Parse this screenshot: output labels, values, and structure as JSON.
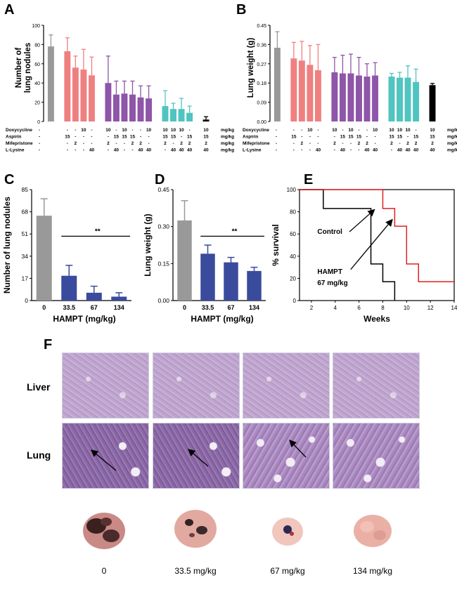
{
  "panel_letters": {
    "A": "A",
    "B": "B",
    "C": "C",
    "D": "D",
    "E": "E",
    "F": "F"
  },
  "colors": {
    "gray": "#999999",
    "salmon": "#f08080",
    "purple": "#8e55a8",
    "teal": "#4fc4c0",
    "black": "#000000",
    "navy": "#3a4a9c",
    "red": "#e02020"
  },
  "treatment_table": {
    "rows": [
      "Doxycycline",
      "Aspirin",
      "Mifepristone",
      "L-Lysine"
    ],
    "units": [
      "mg/kg",
      "mg/kg",
      "mg/kg",
      "mg/kg"
    ],
    "columns": [
      [
        "-",
        "-",
        "-",
        "-"
      ],
      [
        "-",
        "15",
        "-",
        "-"
      ],
      [
        "-",
        "-",
        "2",
        "-"
      ],
      [
        "10",
        "-",
        "-",
        "-"
      ],
      [
        "-",
        "-",
        "-",
        "40"
      ],
      [
        "10",
        "-",
        "2",
        "-"
      ],
      [
        "-",
        "15",
        "-",
        "40"
      ],
      [
        "10",
        "15",
        "-",
        "-"
      ],
      [
        "-",
        "15",
        "2",
        "-"
      ],
      [
        "-",
        "-",
        "2",
        "40"
      ],
      [
        "10",
        "-",
        "-",
        "40"
      ],
      [
        "10",
        "15",
        "2",
        "-"
      ],
      [
        "10",
        "15",
        "-",
        "40"
      ],
      [
        "10",
        "-",
        "2",
        "40"
      ],
      [
        "-",
        "15",
        "2",
        "40"
      ],
      [
        "10",
        "15",
        "2",
        "40"
      ]
    ]
  },
  "chart_data": [
    {
      "panel": "A",
      "type": "bar",
      "ylabel": "Number of\nlung nodules",
      "ylim": [
        0,
        100
      ],
      "yticks": [
        "0",
        "20",
        "40",
        "60",
        "80",
        "100"
      ],
      "values": [
        78,
        73,
        56,
        54,
        48,
        40,
        28,
        29,
        28,
        25,
        24,
        16,
        13,
        13,
        9,
        2
      ],
      "errors": [
        12,
        14,
        12,
        21,
        19,
        28,
        14,
        13,
        14,
        12,
        13,
        16,
        6,
        11,
        7,
        3
      ],
      "colors": [
        "gray",
        "salmon",
        "salmon",
        "salmon",
        "salmon",
        "purple",
        "purple",
        "purple",
        "purple",
        "purple",
        "purple",
        "teal",
        "teal",
        "teal",
        "teal",
        "black"
      ]
    },
    {
      "panel": "B",
      "type": "bar",
      "ylabel": "Lung weight (g)",
      "ylim": [
        0,
        0.45
      ],
      "yticks": [
        "0.00",
        "0.09",
        "0.18",
        "0.27",
        "0.36",
        "0.45"
      ],
      "values": [
        0.345,
        0.295,
        0.285,
        0.265,
        0.24,
        0.23,
        0.225,
        0.225,
        0.215,
        0.21,
        0.215,
        0.21,
        0.205,
        0.205,
        0.185,
        0.17
      ],
      "errors": [
        0.075,
        0.075,
        0.09,
        0.09,
        0.12,
        0.07,
        0.085,
        0.09,
        0.085,
        0.06,
        0.06,
        0.015,
        0.025,
        0.055,
        0.06,
        0.008
      ],
      "colors": [
        "gray",
        "salmon",
        "salmon",
        "salmon",
        "salmon",
        "purple",
        "purple",
        "purple",
        "purple",
        "purple",
        "purple",
        "teal",
        "teal",
        "teal",
        "teal",
        "black"
      ]
    },
    {
      "panel": "C",
      "type": "bar",
      "ylabel": "Number of lung nodules",
      "xlabel": "HAMPT (mg/kg)",
      "ylim": [
        0,
        85
      ],
      "yticks": [
        "0",
        "17",
        "34",
        "51",
        "68",
        "85"
      ],
      "categories": [
        "0",
        "33.5",
        "67",
        "134"
      ],
      "values": [
        65,
        19,
        6,
        3
      ],
      "errors": [
        13,
        8,
        5,
        3
      ],
      "colors": [
        "gray",
        "navy",
        "navy",
        "navy"
      ],
      "significance": "**"
    },
    {
      "panel": "D",
      "type": "bar",
      "ylabel": "Lung weight (g)",
      "xlabel": "HAMPT (mg/kg)",
      "ylim": [
        0,
        0.45
      ],
      "yticks": [
        "0.00",
        "0.15",
        "0.30",
        "0.45"
      ],
      "categories": [
        "0",
        "33.5",
        "67",
        "134"
      ],
      "values": [
        0.325,
        0.19,
        0.155,
        0.12
      ],
      "errors": [
        0.08,
        0.035,
        0.02,
        0.015
      ],
      "colors": [
        "gray",
        "navy",
        "navy",
        "navy"
      ],
      "significance": "**"
    },
    {
      "panel": "E",
      "type": "line",
      "ylabel": "% survival",
      "xlabel": "Weeks",
      "xlim": [
        1,
        14
      ],
      "ylim": [
        0,
        100
      ],
      "xticks": [
        "2",
        "4",
        "6",
        "8",
        "10",
        "12",
        "14"
      ],
      "yticks": [
        "0",
        "20",
        "40",
        "60",
        "80",
        "100"
      ],
      "series": [
        {
          "name": "Control",
          "color": "black",
          "steps": [
            [
              1,
              100
            ],
            [
              3,
              100
            ],
            [
              3,
              83
            ],
            [
              7,
              83
            ],
            [
              7,
              33
            ],
            [
              8,
              33
            ],
            [
              8,
              17
            ],
            [
              9,
              17
            ],
            [
              9,
              0
            ]
          ]
        },
        {
          "name": "HAMPT\n67 mg/kg",
          "color": "red",
          "steps": [
            [
              1,
              100
            ],
            [
              8,
              100
            ],
            [
              8,
              83
            ],
            [
              9,
              83
            ],
            [
              9,
              67
            ],
            [
              10,
              67
            ],
            [
              10,
              33
            ],
            [
              11,
              33
            ],
            [
              11,
              17
            ],
            [
              14,
              17
            ]
          ]
        }
      ]
    }
  ],
  "panel_f": {
    "row_labels": [
      "Liver",
      "Lung"
    ],
    "dose_labels": [
      "0",
      "33.5 mg/kg",
      "67 mg/kg",
      "134 mg/kg"
    ]
  }
}
